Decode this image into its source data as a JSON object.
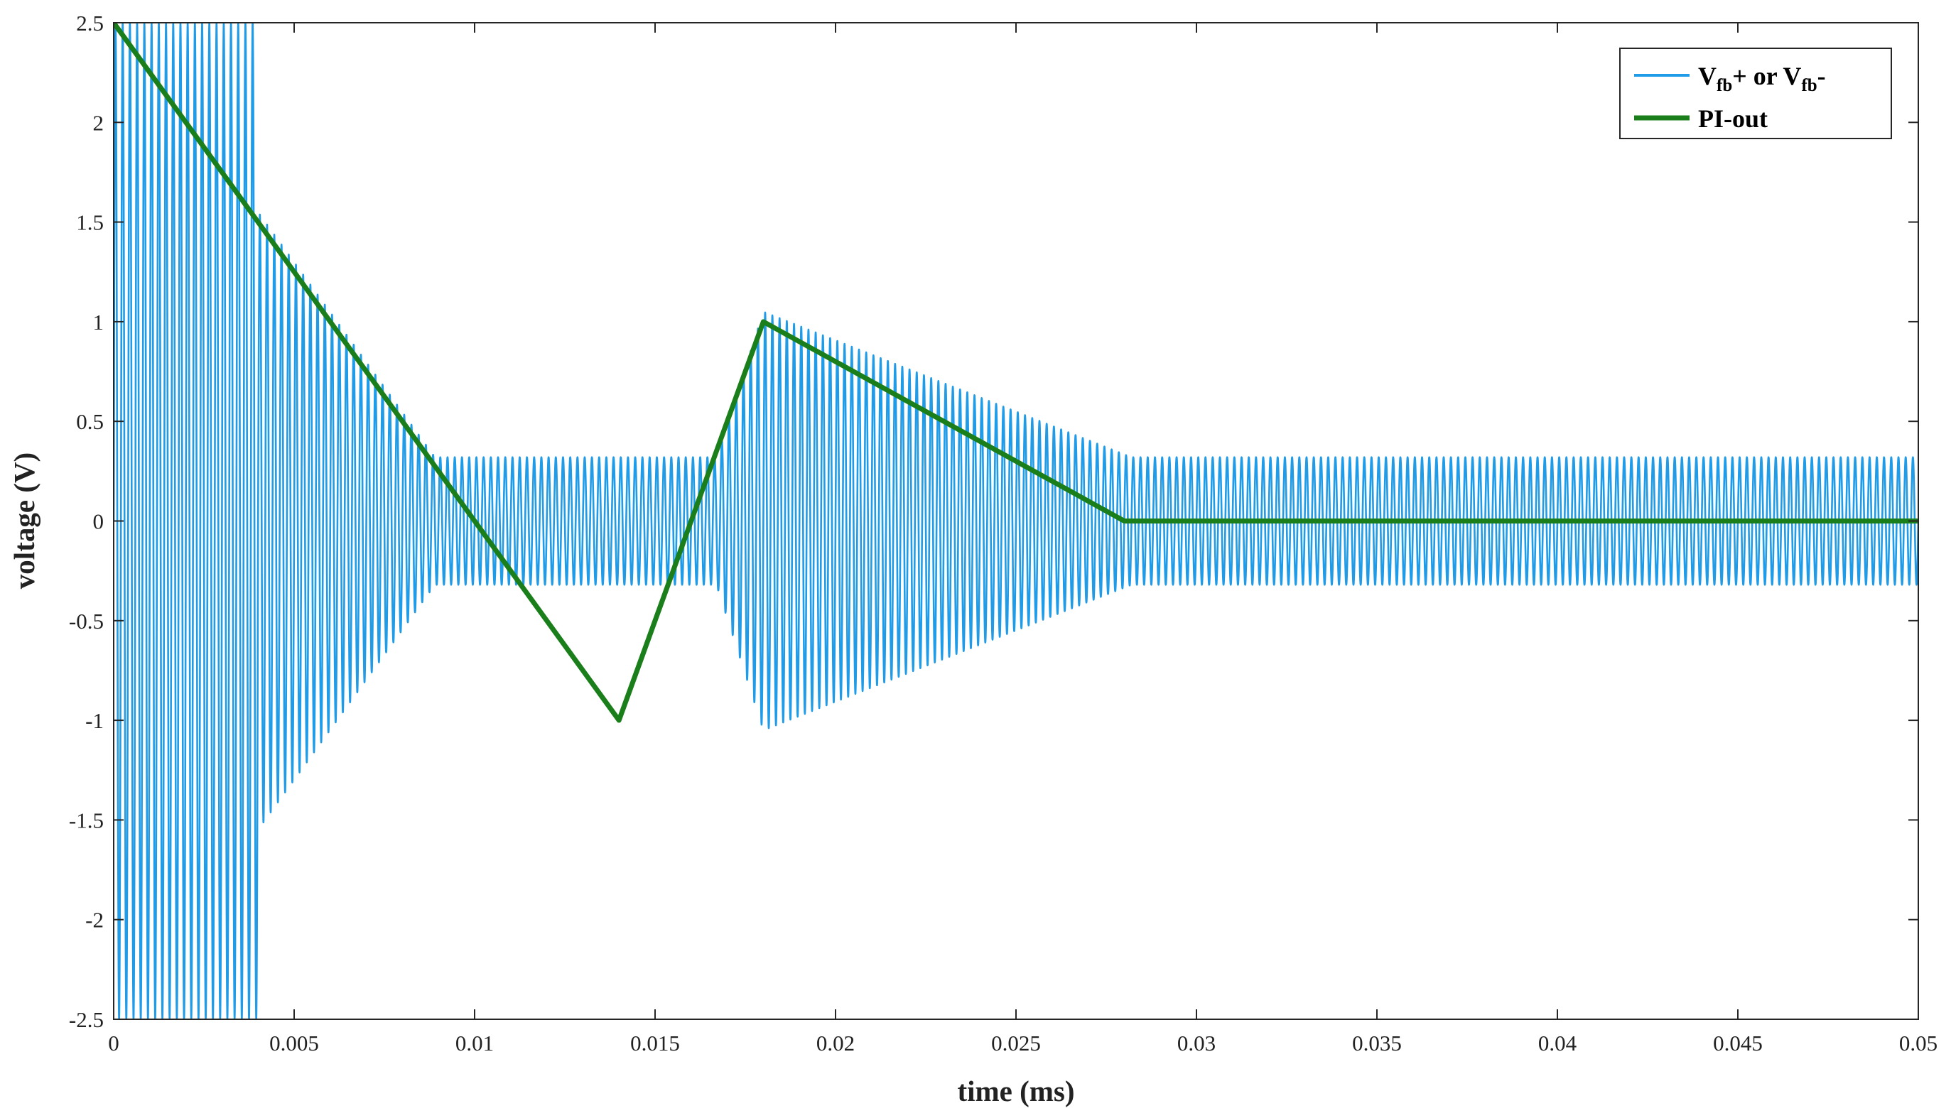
{
  "chart_data": {
    "type": "line",
    "title": "",
    "xlabel": "time (ms)",
    "ylabel": "voltage (V)",
    "xlim": [
      0,
      0.05
    ],
    "ylim": [
      -2.5,
      2.5
    ],
    "xticks": [
      0,
      0.005,
      0.01,
      0.015,
      0.02,
      0.025,
      0.03,
      0.035,
      0.04,
      0.045,
      0.05
    ],
    "xtick_labels": [
      "0",
      "0.005",
      "0.01",
      "0.015",
      "0.02",
      "0.025",
      "0.03",
      "0.035",
      "0.04",
      "0.045",
      "0.05"
    ],
    "yticks": [
      -2.5,
      -2,
      -1.5,
      -1,
      -0.5,
      0,
      0.5,
      1,
      1.5,
      2,
      2.5
    ],
    "ytick_labels": [
      "-2.5",
      "-2",
      "-1.5",
      "-1",
      "-0.5",
      "0",
      "0.5",
      "1",
      "1.5",
      "2",
      "2.5"
    ],
    "grid": false,
    "legend_position": "top-right",
    "series": [
      {
        "name_parts": {
          "v1": "V",
          "sub1": "fb",
          "mid": "+ or V",
          "sub2": "fb",
          "end": "-"
        },
        "color": "#1f9be8",
        "kind": "oscillation",
        "oscillation_frequency_per_ms": 5000,
        "envelope": {
          "t": [
            0,
            0.004,
            0.004,
            0.0089,
            0.0089,
            0.0167,
            0.0167,
            0.018,
            0.0282,
            0.0282,
            0.05
          ],
          "amplitude": [
            2.5,
            2.5,
            1.55,
            0.32,
            0.32,
            0.32,
            0.32,
            1.05,
            0.32,
            0.32,
            0.32
          ]
        }
      },
      {
        "name": "PI-out",
        "color": "#1a7f1a",
        "kind": "line",
        "x": [
          0,
          0.014,
          0.018,
          0.028,
          0.05
        ],
        "y": [
          2.5,
          -1,
          1,
          0,
          0
        ]
      }
    ]
  }
}
